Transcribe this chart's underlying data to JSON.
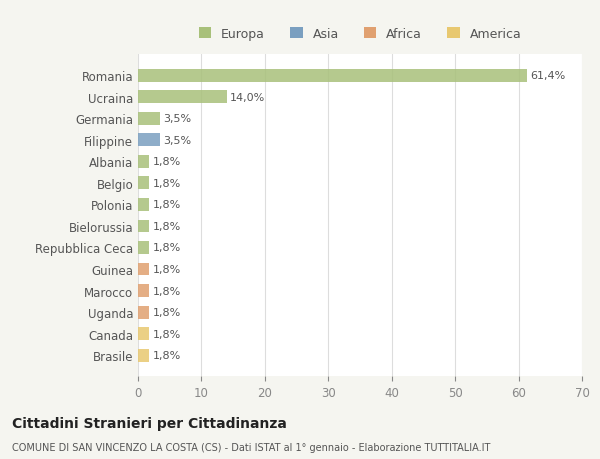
{
  "countries": [
    "Romania",
    "Ucraina",
    "Germania",
    "Filippine",
    "Albania",
    "Belgio",
    "Polonia",
    "Bielorussia",
    "Repubblica Ceca",
    "Guinea",
    "Marocco",
    "Uganda",
    "Canada",
    "Brasile"
  ],
  "values": [
    61.4,
    14.0,
    3.5,
    3.5,
    1.8,
    1.8,
    1.8,
    1.8,
    1.8,
    1.8,
    1.8,
    1.8,
    1.8,
    1.8
  ],
  "labels": [
    "61,4%",
    "14,0%",
    "3,5%",
    "3,5%",
    "1,8%",
    "1,8%",
    "1,8%",
    "1,8%",
    "1,8%",
    "1,8%",
    "1,8%",
    "1,8%",
    "1,8%",
    "1,8%"
  ],
  "continents": [
    "Europa",
    "Europa",
    "Europa",
    "Asia",
    "Europa",
    "Europa",
    "Europa",
    "Europa",
    "Europa",
    "Africa",
    "Africa",
    "Africa",
    "America",
    "America"
  ],
  "continent_colors": {
    "Europa": "#a8c07a",
    "Asia": "#7a9fc0",
    "Africa": "#e0a070",
    "America": "#e8c870"
  },
  "background_color": "#f5f5f0",
  "bar_background": "#ffffff",
  "title": "Cittadini Stranieri per Cittadinanza",
  "subtitle": "COMUNE DI SAN VINCENZO LA COSTA (CS) - Dati ISTAT al 1° gennaio - Elaborazione TUTTITALIA.IT",
  "xlim": [
    0,
    70
  ],
  "xticks": [
    0,
    10,
    20,
    30,
    40,
    50,
    60,
    70
  ],
  "grid_color": "#dddddd",
  "legend_labels": [
    "Europa",
    "Asia",
    "Africa",
    "America"
  ]
}
